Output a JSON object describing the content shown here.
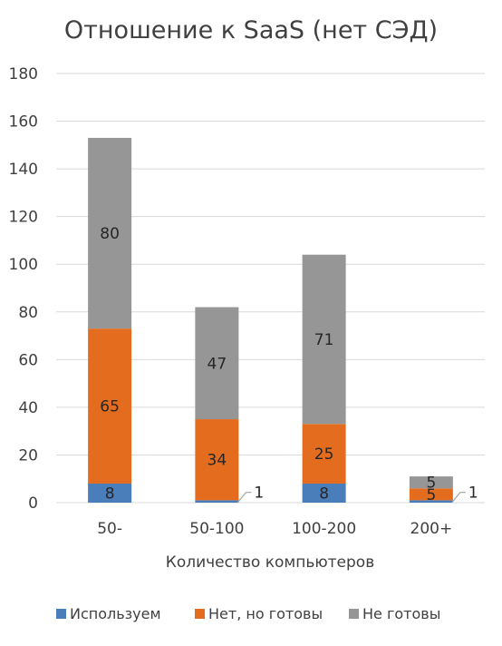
{
  "chart_data": {
    "type": "bar",
    "stacked": true,
    "title": "Отношение к SaaS (нет СЭД)",
    "xlabel": "Количество компьютеров",
    "ylabel": "",
    "categories": [
      "50-",
      "50-100",
      "100-200",
      "200+"
    ],
    "ylim": [
      0,
      180
    ],
    "yticks": [
      "0",
      "20",
      "40",
      "60",
      "80",
      "100",
      "120",
      "140",
      "160",
      "180"
    ],
    "grid": true,
    "legend_position": "bottom",
    "series": [
      {
        "name": "Используем",
        "color": "#4a7ebb",
        "values": [
          8,
          1,
          8,
          1
        ]
      },
      {
        "name": "Нет, но готовы",
        "color": "#e46c1f",
        "values": [
          65,
          34,
          25,
          5
        ]
      },
      {
        "name": "Не готовы",
        "color": "#969696",
        "values": [
          80,
          47,
          71,
          5
        ]
      }
    ]
  }
}
